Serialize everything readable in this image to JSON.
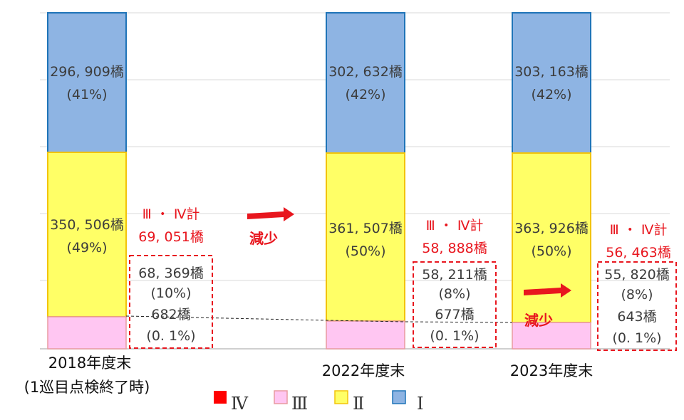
{
  "chart_data": {
    "type": "bar",
    "stacked": true,
    "categories": [
      "2018年度末",
      "2022年度末",
      "2023年度末"
    ],
    "category_subtitle": [
      "(1巡目点検終了時)",
      "",
      ""
    ],
    "series": [
      {
        "name": "Ⅳ",
        "color": "#ff0000",
        "values": [
          682,
          677,
          643
        ]
      },
      {
        "name": "Ⅲ",
        "color": "#ffc6f2",
        "values": [
          68369,
          58211,
          55820
        ]
      },
      {
        "name": "Ⅱ",
        "color": "#ffff66",
        "values": [
          350506,
          361507,
          363926
        ]
      },
      {
        "name": "Ⅰ",
        "color": "#8eb4e3",
        "values": [
          296909,
          302632,
          303163
        ]
      }
    ],
    "bar_labels": [
      {
        "i": "296, 909橋",
        "ip": "(41%)",
        "ii": "350, 506橋",
        "iip": "(49%)"
      },
      {
        "i": "302, 632橋",
        "ip": "(42%)",
        "ii": "361, 507橋",
        "iip": "(50%)"
      },
      {
        "i": "303, 163橋",
        "ip": "(42%)",
        "ii": "363, 926橋",
        "iip": "(50%)"
      }
    ],
    "detail_boxes": [
      {
        "iii": "68, 369橋",
        "iii_pct": "(10%)",
        "iv": "682橋",
        "iv_pct": "(0. 1%)"
      },
      {
        "iii": "58, 211橋",
        "iii_pct": "(8%)",
        "iv": "677橋",
        "iv_pct": "(0. 1%)"
      },
      {
        "iii": "55, 820橋",
        "iii_pct": "(8%)",
        "iv": "643橋",
        "iv_pct": "(0. 1%)"
      }
    ],
    "totals": [
      {
        "label": "Ⅲ ・ Ⅳ計",
        "value": "69, 051橋"
      },
      {
        "label": "Ⅲ ・ Ⅳ計",
        "value": "58, 888橋"
      },
      {
        "label": "Ⅲ ・ Ⅳ計",
        "value": "56, 463橋"
      }
    ],
    "annotations": [
      "減少",
      "減少"
    ],
    "legend": [
      "Ⅳ",
      "Ⅲ",
      "Ⅱ",
      "Ⅰ"
    ],
    "grid": true
  },
  "colors": {
    "edge_i": "#1f74b8",
    "edge_ii": "#f2c40a",
    "edge_iii": "#e89aa0",
    "accent": "#e8161e"
  }
}
